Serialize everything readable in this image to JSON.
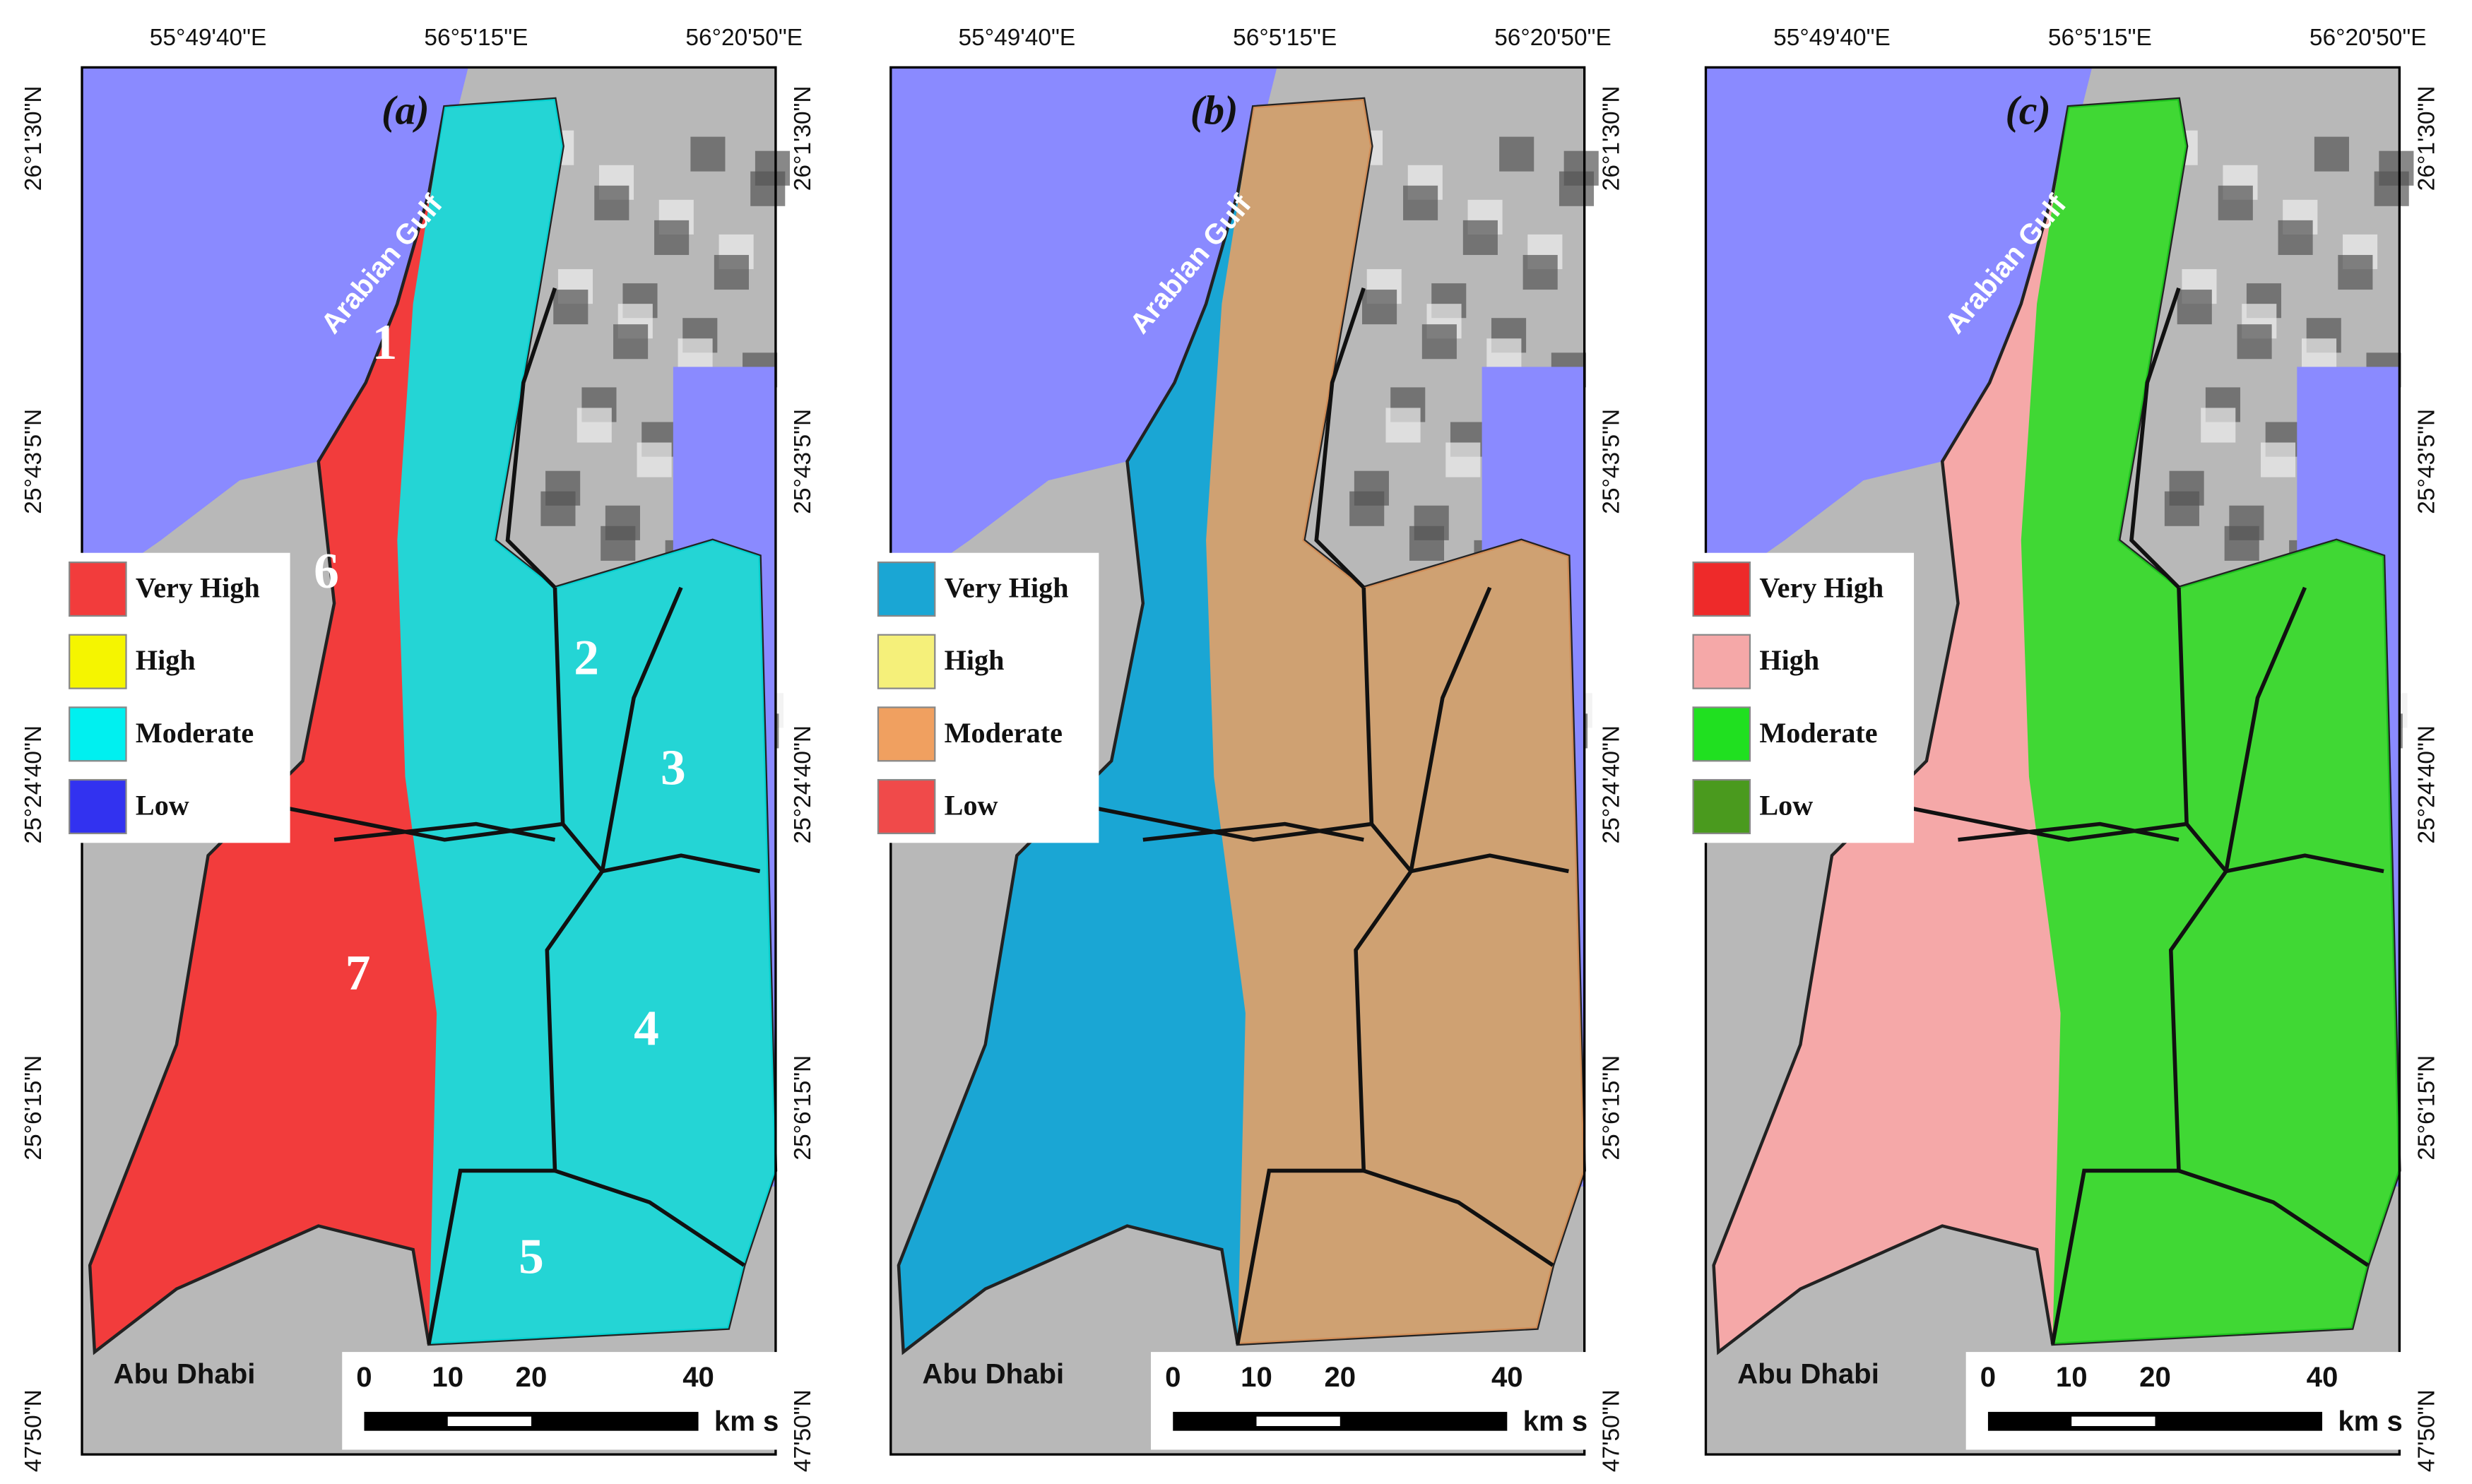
{
  "top_axis_labels": [
    "55°49'40\"E",
    "56°5'15\"E",
    "56°20'50\"E"
  ],
  "side_axis_labels": [
    "26°1'30\"N",
    "25°43'5\"N",
    "25°24'40\"N",
    "25°6'15\"N",
    "47'50\"N"
  ],
  "places": {
    "sea": "Arabian Gulf",
    "city": "Abu Dhabi"
  },
  "scale_bar": {
    "ticks": [
      "0",
      "10",
      "20",
      "40"
    ],
    "unit": "km s"
  },
  "panels": [
    {
      "label": "(a)",
      "legend": [
        {
          "label": "Very High",
          "color": "#f23c3c"
        },
        {
          "label": "High",
          "color": "#f5f500"
        },
        {
          "label": "Moderate",
          "color": "#00f0f0"
        },
        {
          "label": "Low",
          "color": "#3232f0"
        }
      ],
      "zones": [
        "1",
        "2",
        "3",
        "4",
        "5",
        "6",
        "7"
      ]
    },
    {
      "label": "(b)",
      "legend": [
        {
          "label": "Very High",
          "color": "#1aa6d4"
        },
        {
          "label": "High",
          "color": "#f5f07a"
        },
        {
          "label": "Moderate",
          "color": "#f0a060"
        },
        {
          "label": "Low",
          "color": "#f04a4a"
        }
      ]
    },
    {
      "label": "(c)",
      "legend": [
        {
          "label": "Very High",
          "color": "#ee2a2a"
        },
        {
          "label": "High",
          "color": "#f5a8a8"
        },
        {
          "label": "Moderate",
          "color": "#20e020"
        },
        {
          "label": "Low",
          "color": "#4a9a1e"
        }
      ]
    }
  ]
}
